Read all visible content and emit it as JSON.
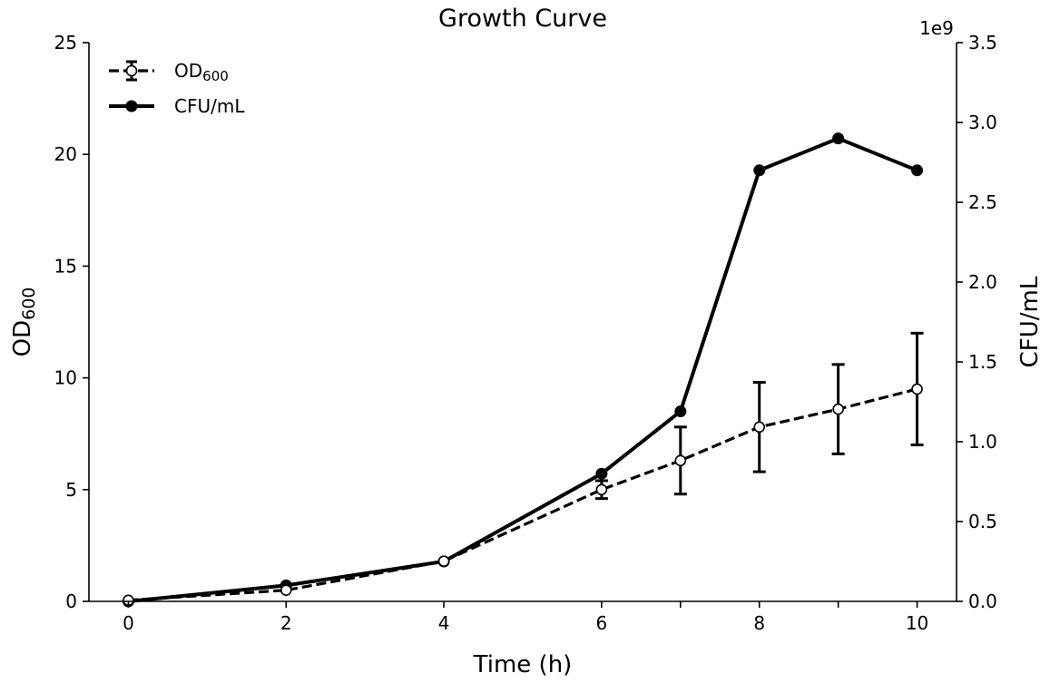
{
  "chart_data": {
    "type": "line",
    "title": "Growth Curve",
    "xlabel": "Time (h)",
    "ylabel": {
      "base": "OD",
      "sub": "600"
    },
    "y2label": "CFU/mL",
    "y2_offset_label": "1e9",
    "xlim": [
      -0.5,
      10.5
    ],
    "ylim": [
      0,
      25
    ],
    "y2lim": [
      0,
      3.5
    ],
    "xticks": [
      0,
      2,
      4,
      6,
      7,
      8,
      9,
      10
    ],
    "xtick_labels": [
      "0",
      "2",
      "4",
      "6",
      "8",
      "10"
    ],
    "xtick_label_values": [
      0,
      2,
      4,
      6,
      8,
      10
    ],
    "yticks": [
      0,
      5,
      10,
      15,
      20,
      25
    ],
    "ytick_labels": [
      "0",
      "5",
      "10",
      "15",
      "20",
      "25"
    ],
    "y2ticks": [
      0,
      0.5,
      1.0,
      1.5,
      2.0,
      2.5,
      3.0,
      3.5
    ],
    "y2tick_labels": [
      "0.0",
      "0.5",
      "1.0",
      "1.5",
      "2.0",
      "2.5",
      "3.0",
      "3.5"
    ],
    "legend_position": "top-left",
    "series": [
      {
        "name": "OD600",
        "legend_base": "OD",
        "legend_sub": "600",
        "axis": "left",
        "style": "dashed",
        "marker": "open-circle",
        "x": [
          0,
          2,
          4,
          6,
          7,
          8,
          9,
          10
        ],
        "values": [
          0.05,
          0.5,
          1.8,
          5.0,
          6.3,
          7.8,
          8.6,
          9.5
        ],
        "errors": [
          0.05,
          0.1,
          0.15,
          0.4,
          1.5,
          2.0,
          2.0,
          2.5
        ]
      },
      {
        "name": "CFU/mL",
        "legend_base": "CFU/mL",
        "axis": "right",
        "style": "solid",
        "marker": "filled-circle",
        "x": [
          0,
          2,
          4,
          6,
          7,
          8,
          9,
          10
        ],
        "values": [
          0.0,
          0.1,
          0.25,
          0.8,
          1.19,
          2.7,
          2.9,
          2.7
        ]
      }
    ]
  }
}
